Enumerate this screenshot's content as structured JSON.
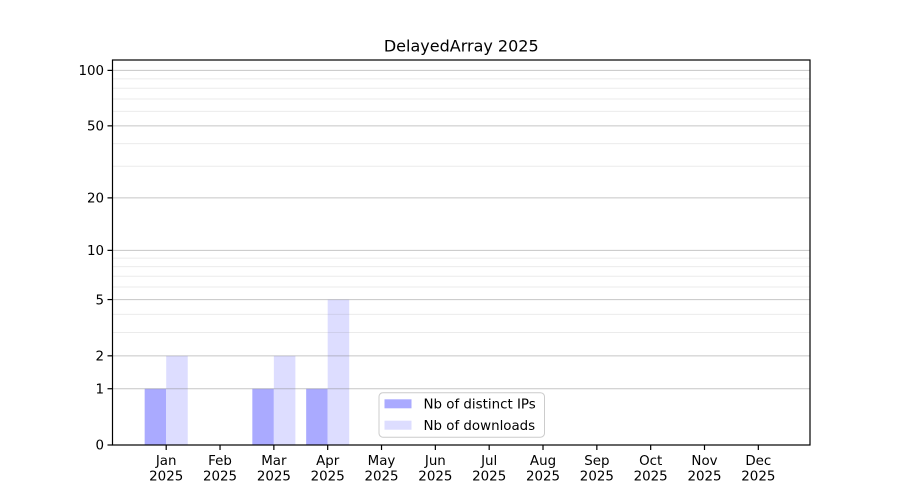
{
  "chart_data": {
    "type": "bar",
    "title": "DelayedArray 2025",
    "categories": [
      "Jan",
      "Feb",
      "Mar",
      "Apr",
      "May",
      "Jun",
      "Jul",
      "Aug",
      "Sep",
      "Oct",
      "Nov",
      "Dec"
    ],
    "year_label": "2025",
    "series": [
      {
        "name": "Nb of distinct IPs",
        "color": "#aaaaff",
        "values": [
          1,
          0,
          1,
          1,
          0,
          0,
          0,
          0,
          0,
          0,
          0,
          0
        ]
      },
      {
        "name": "Nb of downloads",
        "color": "#ddddff",
        "values": [
          2,
          0,
          2,
          5,
          0,
          0,
          0,
          0,
          0,
          0,
          0,
          0
        ]
      }
    ],
    "xlabel": "",
    "ylabel": "",
    "y_scale": "log10(1+value)",
    "y_major_ticks": [
      0,
      1,
      2,
      5,
      10,
      20,
      50,
      100
    ],
    "y_minor_gridlines": [
      3,
      4,
      6,
      7,
      8,
      9,
      30,
      40,
      60,
      70,
      80,
      90
    ],
    "ylim": [
      0,
      113
    ],
    "grid": "horizontal",
    "legend_position": "lower center",
    "colors": {
      "major_grid": "rgba(128,128,128,0.45)",
      "minor_grid": "rgba(128,128,128,0.16)",
      "spine": "#000000",
      "legend_border": "#cccccc",
      "legend_background": "#ffffff",
      "background": "#ffffff"
    }
  }
}
